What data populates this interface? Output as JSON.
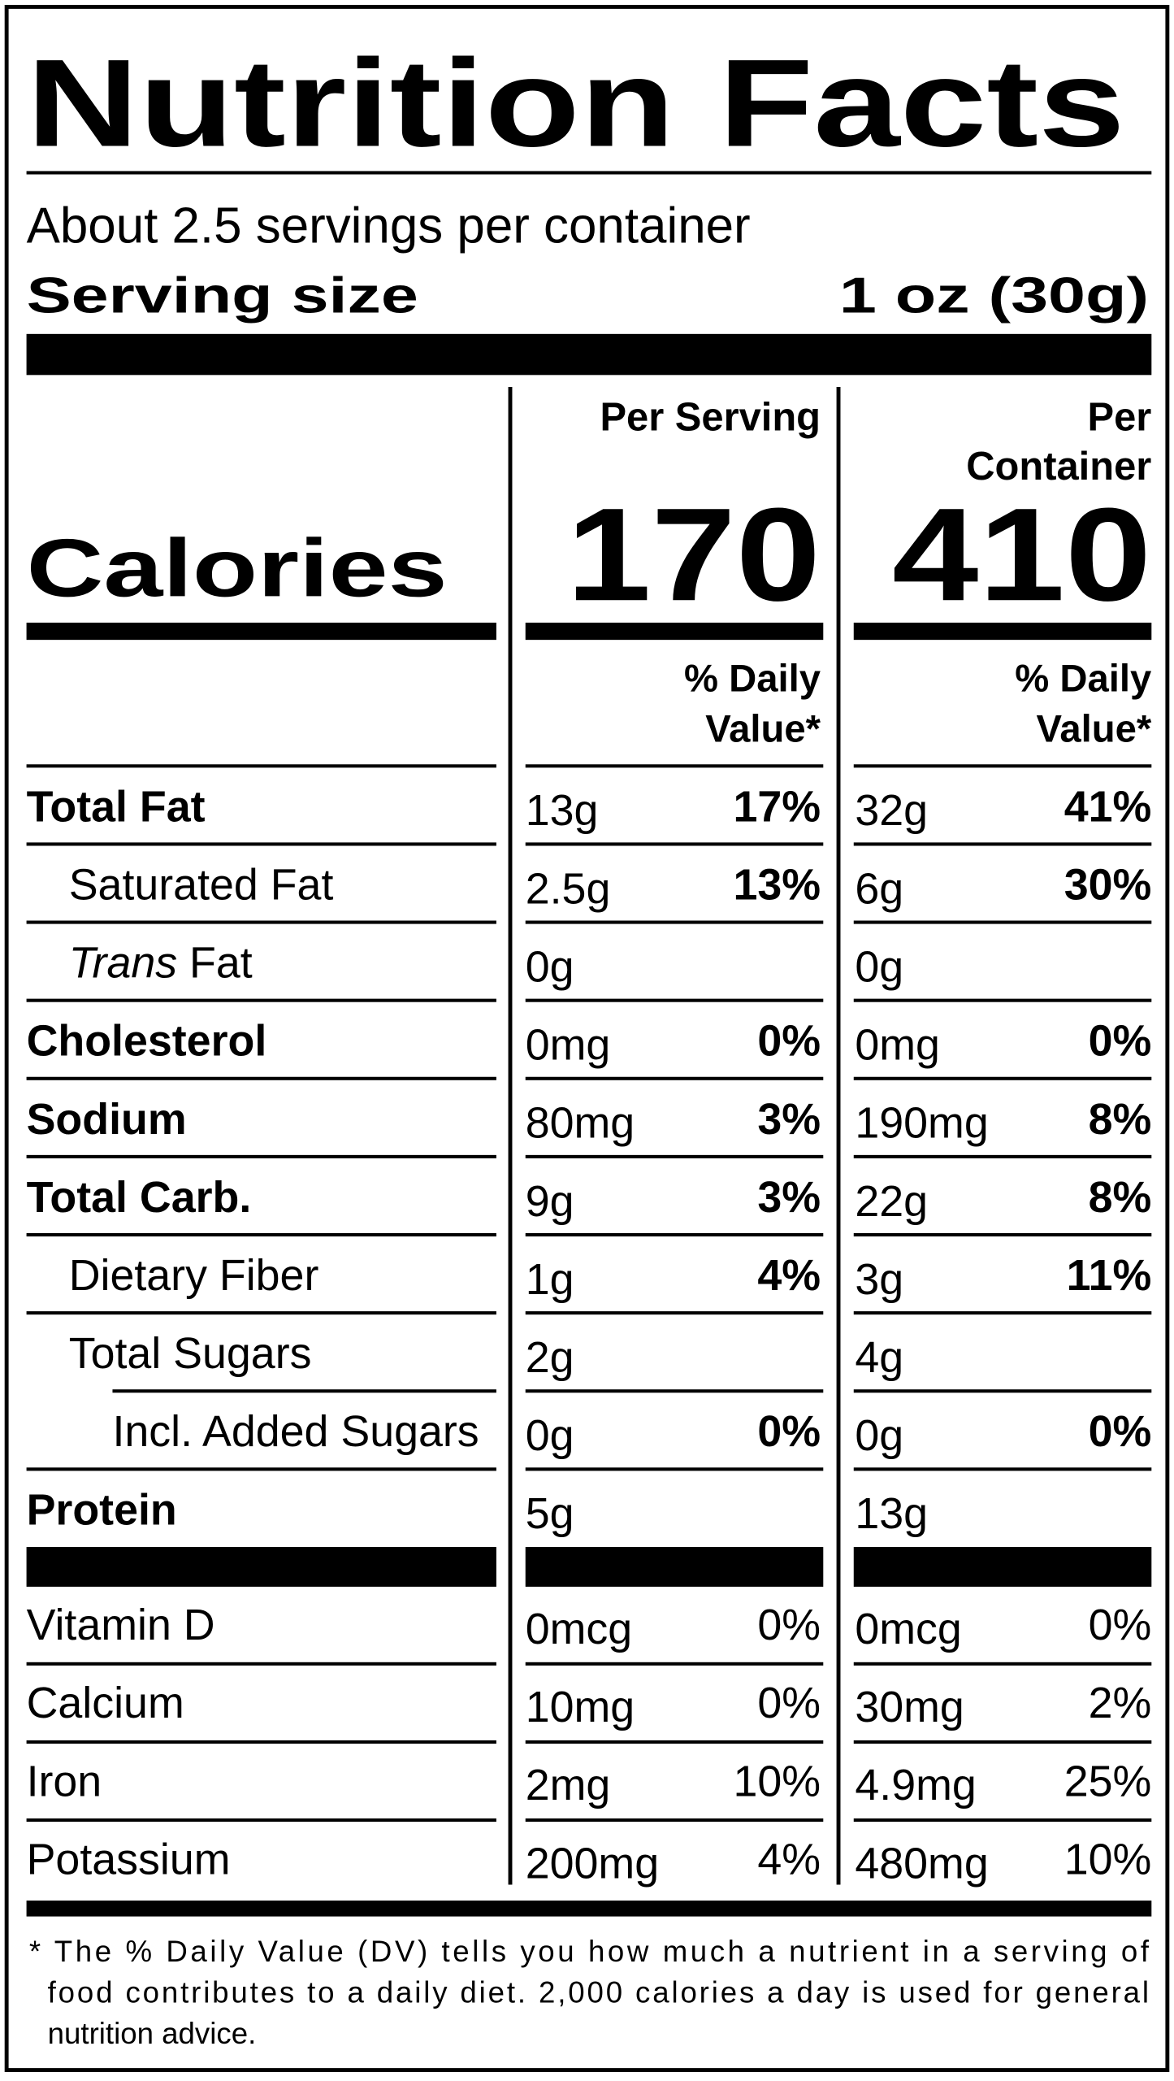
{
  "header": {
    "title": "Nutrition Facts",
    "servings": "About 2.5 servings per container",
    "serving_size_label": "Serving size",
    "serving_size": "1 oz (30g)"
  },
  "columns": {
    "per_serving": "Per Serving",
    "per_container": [
      "Per",
      "Container"
    ],
    "daily_value": [
      "% Daily",
      "Value*"
    ]
  },
  "calories": {
    "label": "Calories",
    "per_serving": "170",
    "per_container": "410"
  },
  "nutrients": [
    {
      "name": "Total Fat",
      "bold": true,
      "level": 0,
      "amount": "13g",
      "dv": "17%",
      "amount_container": "32g",
      "dv_container": "41%"
    },
    {
      "name": "Saturated Fat",
      "bold": false,
      "level": 1,
      "amount": "2.5g",
      "dv": "13%",
      "amount_container": "6g",
      "dv_container": "30%"
    },
    {
      "italic": "Trans",
      "name": " Fat",
      "bold": false,
      "level": 1,
      "amount": "0g",
      "amount_container": "0g"
    },
    {
      "name": "Cholesterol",
      "bold": true,
      "level": 0,
      "amount": "0mg",
      "dv": "0%",
      "amount_container": "0mg",
      "dv_container": "0%"
    },
    {
      "name": "Sodium",
      "bold": true,
      "level": 0,
      "amount": "80mg",
      "dv": "3%",
      "amount_container": "190mg",
      "dv_container": "8%"
    },
    {
      "name": "Total Carb.",
      "bold": true,
      "level": 0,
      "amount": "9g",
      "dv": "3%",
      "amount_container": "22g",
      "dv_container": "8%"
    },
    {
      "name": "Dietary Fiber",
      "bold": false,
      "level": 1,
      "amount": "1g",
      "dv": "4%",
      "amount_container": "3g",
      "dv_container": "11%"
    },
    {
      "name": "Total Sugars",
      "bold": false,
      "level": 1,
      "amount": "2g",
      "amount_container": "4g"
    },
    {
      "name": "Incl. Added Sugars",
      "bold": false,
      "level": 2,
      "amount": "0g",
      "dv": "0%",
      "amount_container": "0g",
      "dv_container": "0%"
    },
    {
      "name": "Protein",
      "bold": true,
      "level": 0,
      "amount": "5g",
      "amount_container": "13g"
    }
  ],
  "vitamins": [
    {
      "name": "Vitamin D",
      "amount": "0mcg",
      "dv": "0%",
      "amount_container": "0mcg",
      "dv_container": "0%"
    },
    {
      "name": "Calcium",
      "amount": "10mg",
      "dv": "0%",
      "amount_container": "30mg",
      "dv_container": "2%"
    },
    {
      "name": "Iron",
      "amount": "2mg",
      "dv": "10%",
      "amount_container": "4.9mg",
      "dv_container": "25%"
    },
    {
      "name": "Potassium",
      "amount": "200mg",
      "dv": "4%",
      "amount_container": "480mg",
      "dv_container": "10%"
    }
  ],
  "footnote": [
    "* The % Daily Value (DV) tells you how much a nutrient in a serving of",
    "food contributes to a daily diet. 2,000 calories a day is used for general",
    "nutrition advice."
  ]
}
